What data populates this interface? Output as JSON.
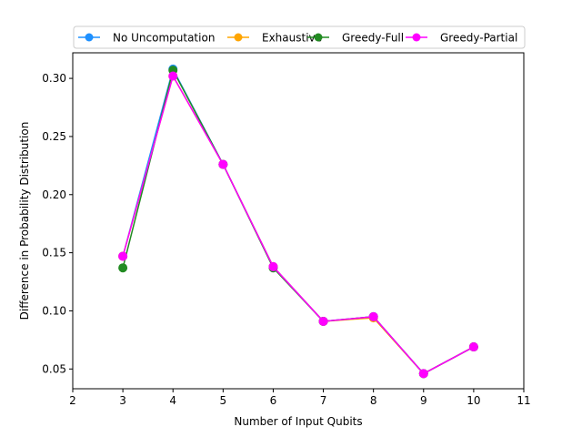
{
  "chart_data": {
    "type": "line",
    "title": "",
    "xlabel": "Number of Input Qubits",
    "ylabel": "Difference in Probability Distribution",
    "xlim": [
      2,
      11
    ],
    "ylim": [
      0.033,
      0.322
    ],
    "xticks": [
      2,
      3,
      4,
      5,
      6,
      7,
      8,
      9,
      10,
      11
    ],
    "yticks": [
      0.05,
      0.1,
      0.15,
      0.2,
      0.25,
      0.3
    ],
    "ytick_labels": [
      "0.05",
      "0.10",
      "0.15",
      "0.20",
      "0.25",
      "0.30"
    ],
    "grid": false,
    "legend_placement": "top-center",
    "x": [
      3,
      4,
      5,
      6,
      7,
      8,
      9,
      10
    ],
    "series": [
      {
        "name": "No Uncomputation",
        "color": "#1e90ff",
        "marker": "circle",
        "values": [
          0.147,
          0.308,
          0.226,
          0.138,
          0.091,
          0.095,
          0.046,
          0.069
        ]
      },
      {
        "name": "Exhaustive",
        "color": "#ffa500",
        "marker": "circle",
        "values": [
          0.147,
          0.302,
          0.226,
          0.138,
          0.091,
          0.094,
          0.046,
          0.069
        ]
      },
      {
        "name": "Greedy-Full",
        "color": "#228b22",
        "marker": "circle",
        "values": [
          0.137,
          0.307,
          0.226,
          0.137,
          0.091,
          0.095,
          0.046,
          0.069
        ]
      },
      {
        "name": "Greedy-Partial",
        "color": "#ff00ff",
        "marker": "circle",
        "values": [
          0.147,
          0.302,
          0.226,
          0.138,
          0.091,
          0.095,
          0.046,
          0.069
        ]
      }
    ]
  }
}
